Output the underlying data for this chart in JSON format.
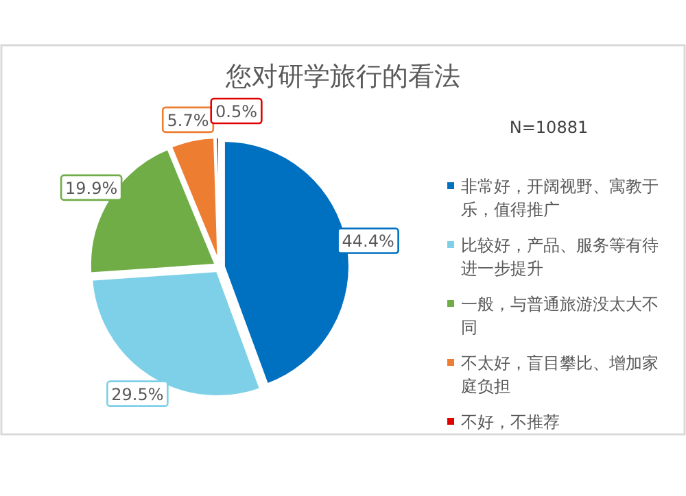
{
  "chart_data": {
    "type": "pie",
    "title": "您对研学旅行的看法",
    "categories": [
      "非常好，开阔视野、寓教于乐，值得推广",
      "比较好，产品、服务等有待进一步提升",
      "一般，与普通旅游没太大不同",
      "不太好，盲目攀比、增加家庭负担",
      "不好，不推荐"
    ],
    "values": [
      44.4,
      29.5,
      19.9,
      5.7,
      0.5
    ],
    "colors": [
      "#0070c0",
      "#7dd0e8",
      "#70ad47",
      "#ed7d31",
      "#e00000"
    ],
    "value_labels": [
      "44.4%",
      "29.5%",
      "19.9%",
      "5.7%",
      "0.5%"
    ],
    "annotations": [
      "N=10881"
    ],
    "legend": "right"
  }
}
